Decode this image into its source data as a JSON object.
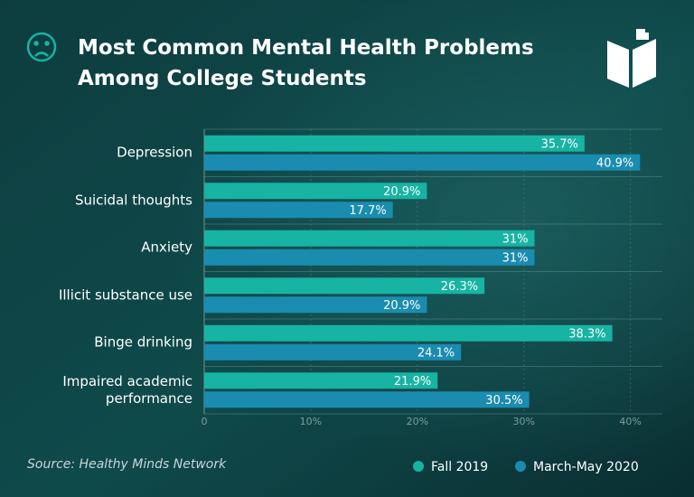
{
  "chart_data": {
    "type": "bar",
    "orientation": "horizontal",
    "title": "Most Common Mental Health Problems Among College Students",
    "source": "Source: Healthy Minds Network",
    "categories": [
      "Depression",
      "Suicidal thoughts",
      "Anxiety",
      "Illicit substance use",
      "Binge drinking",
      "Impaired academic performance"
    ],
    "series": [
      {
        "name": "Fall 2019",
        "color": "#17b3a3",
        "values": [
          35.7,
          20.9,
          31,
          26.3,
          38.3,
          21.9
        ],
        "value_labels": [
          "35.7%",
          "20.9%",
          "31%",
          "26.3%",
          "38.3%",
          "21.9%"
        ]
      },
      {
        "name": "March-May 2020",
        "color": "#1a8cb0",
        "values": [
          40.9,
          17.7,
          31,
          20.9,
          24.1,
          30.5
        ],
        "value_labels": [
          "40.9%",
          "17.7%",
          "31%",
          "20.9%",
          "24.1%",
          "30.5%"
        ]
      }
    ],
    "xlim": [
      0,
      43
    ],
    "xticks": [
      0,
      {
        "value": 10,
        "label": "10%"
      },
      {
        "value": 20,
        "label": "20%"
      },
      {
        "value": 30,
        "label": "30%"
      },
      {
        "value": 40,
        "label": "40%"
      }
    ],
    "grid": true
  }
}
